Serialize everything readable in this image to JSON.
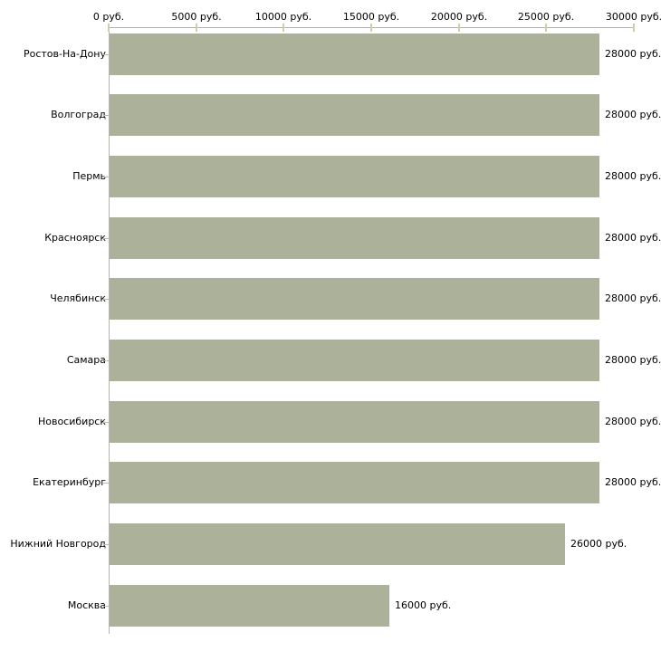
{
  "chart_data": {
    "type": "bar",
    "orientation": "horizontal",
    "title": "",
    "xlabel": "",
    "ylabel": "",
    "unit": "руб.",
    "categories": [
      "Ростов-На-Дону",
      "Волгоград",
      "Пермь",
      "Красноярск",
      "Челябинск",
      "Самара",
      "Новосибирск",
      "Екатеринбург",
      "Нижний Новгород",
      "Москва"
    ],
    "values": [
      28000,
      28000,
      28000,
      28000,
      28000,
      28000,
      28000,
      28000,
      26000,
      16000
    ],
    "value_labels": [
      "28000 руб.",
      "28000 руб.",
      "28000 руб.",
      "28000 руб.",
      "28000 руб.",
      "28000 руб.",
      "28000 руб.",
      "28000 руб.",
      "26000 руб.",
      "16000 руб."
    ],
    "x_axis": {
      "min": 0,
      "max": 30000,
      "tick_values": [
        0,
        5000,
        10000,
        15000,
        20000,
        25000,
        30000
      ],
      "tick_labels": [
        "0 руб.",
        "5000 руб.",
        "10000 руб.",
        "15000 руб.",
        "20000 руб.",
        "25000 руб.",
        "30000 руб."
      ]
    },
    "grid": false,
    "legend": false,
    "colors": {
      "bar": "#abb299",
      "axis_line": "#b3b3b3",
      "x_tick": "#ccd0a2",
      "category_tick": "#bdbeac",
      "text": "#000000",
      "background": "#ffffff"
    }
  }
}
